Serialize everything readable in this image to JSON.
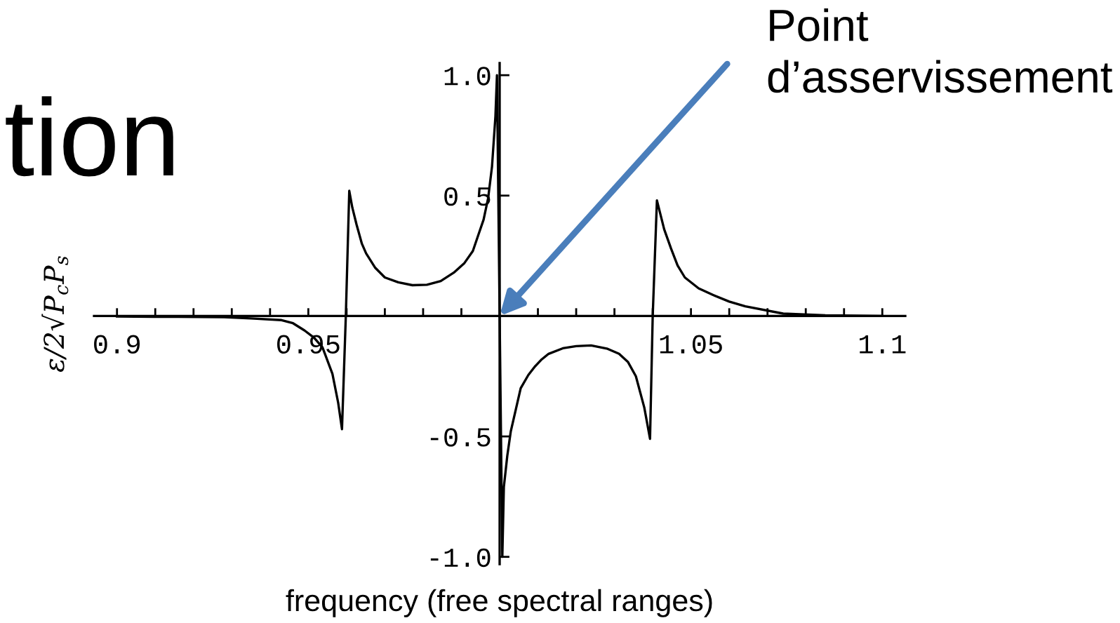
{
  "chart_data": {
    "type": "line",
    "x": [
      0.9,
      0.91,
      0.928,
      0.935,
      0.943,
      0.946,
      0.949,
      0.9515,
      0.9537,
      0.9563,
      0.9578,
      0.9588,
      0.9598,
      0.9607,
      0.9615,
      0.9626,
      0.964,
      0.9651,
      0.9675,
      0.97,
      0.9735,
      0.9772,
      0.981,
      0.9846,
      0.988,
      0.9908,
      0.993,
      0.9945,
      0.9958,
      0.997,
      0.998,
      0.9989,
      0.9993,
      1.0,
      1.0007,
      1.0011,
      1.002,
      1.0029,
      1.0055,
      1.0075,
      1.0092,
      1.011,
      1.0128,
      1.0165,
      1.02,
      1.0239,
      1.028,
      1.0312,
      1.0335,
      1.0356,
      1.0378,
      1.0393,
      1.04,
      1.0411,
      1.043,
      1.0448,
      1.0465,
      1.0484,
      1.052,
      1.0558,
      1.06,
      1.0642,
      1.0741,
      1.0851,
      1.1
    ],
    "values": [
      -0.002,
      -0.003,
      -0.005,
      -0.01,
      -0.017,
      -0.03,
      -0.06,
      -0.09,
      -0.13,
      -0.24,
      -0.36,
      -0.47,
      0.0,
      0.52,
      0.45,
      0.38,
      0.3,
      0.26,
      0.2,
      0.16,
      0.14,
      0.128,
      0.13,
      0.145,
      0.18,
      0.22,
      0.27,
      0.34,
      0.4,
      0.49,
      0.62,
      0.83,
      1.0,
      0.0,
      -1.0,
      -0.71,
      -0.58,
      -0.48,
      -0.3,
      -0.245,
      -0.21,
      -0.18,
      -0.157,
      -0.134,
      -0.125,
      -0.122,
      -0.135,
      -0.157,
      -0.19,
      -0.25,
      -0.38,
      -0.51,
      0.0,
      0.48,
      0.36,
      0.28,
      0.21,
      0.16,
      0.115,
      0.087,
      0.06,
      0.04,
      0.01,
      0.003,
      0.0
    ],
    "color": "#000000",
    "xlim": [
      0.894,
      1.106
    ],
    "ylim": [
      -1.03,
      1.05
    ],
    "xticks": [
      0.9,
      {
        "value": 0.91,
        "label": null
      },
      {
        "value": 0.92,
        "label": null
      },
      {
        "value": 0.93,
        "label": null
      },
      {
        "value": 0.94,
        "label": null
      },
      0.95,
      {
        "value": 0.96,
        "label": null
      },
      {
        "value": 0.97,
        "label": null
      },
      {
        "value": 0.98,
        "label": null
      },
      {
        "value": 0.99,
        "label": null
      },
      {
        "value": 1.01,
        "label": null
      },
      {
        "value": 1.02,
        "label": null
      },
      {
        "value": 1.03,
        "label": null
      },
      {
        "value": 1.04,
        "label": null
      },
      1.05,
      {
        "value": 1.06,
        "label": null
      },
      {
        "value": 1.07,
        "label": null
      },
      {
        "value": 1.08,
        "label": null
      },
      {
        "value": 1.09,
        "label": null
      },
      1.1
    ],
    "yticks": [
      {
        "value": -1,
        "label": "-1.0"
      },
      {
        "value": -0.5,
        "label": "-0.5"
      },
      {
        "value": 0.5,
        "label": "0.5"
      },
      {
        "value": 1,
        "label": "1.0"
      }
    ],
    "xlabel": "frequency (free spectral ranges)",
    "ylabel": "ε/2√P$_{c}$P$_{s}$",
    "annotations": [
      "tion",
      {
        "text": "Point\nd’asservissement",
        "x": 1.0,
        "y": 0
      }
    ]
  }
}
